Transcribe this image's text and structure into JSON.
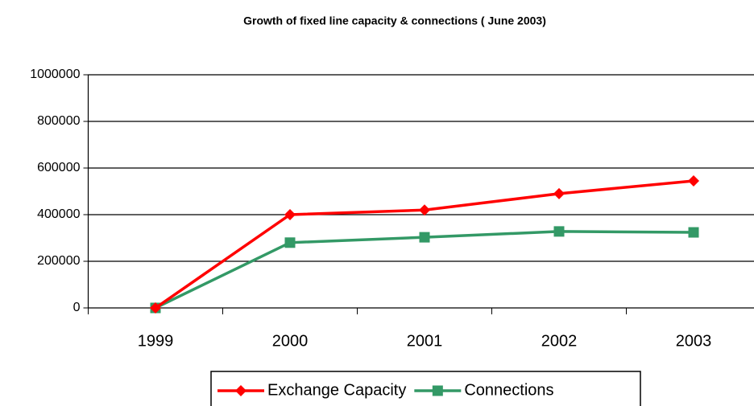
{
  "chart_data": {
    "type": "line",
    "title": "Growth of fixed line capacity & connections ( June 2003)",
    "categories": [
      "1999",
      "2000",
      "2001",
      "2002",
      "2003"
    ],
    "series": [
      {
        "name": "Exchange Capacity",
        "color": "#ff0000",
        "marker": "diamond",
        "values": [
          0,
          400000,
          420000,
          490000,
          545000
        ]
      },
      {
        "name": "Connections",
        "color": "#339966",
        "marker": "square",
        "values": [
          0,
          280000,
          303000,
          328000,
          324000
        ]
      }
    ],
    "ylim": [
      0,
      1000000
    ],
    "yticks": [
      0,
      200000,
      400000,
      600000,
      800000,
      1000000
    ],
    "grid": true,
    "legend": "bottom"
  }
}
